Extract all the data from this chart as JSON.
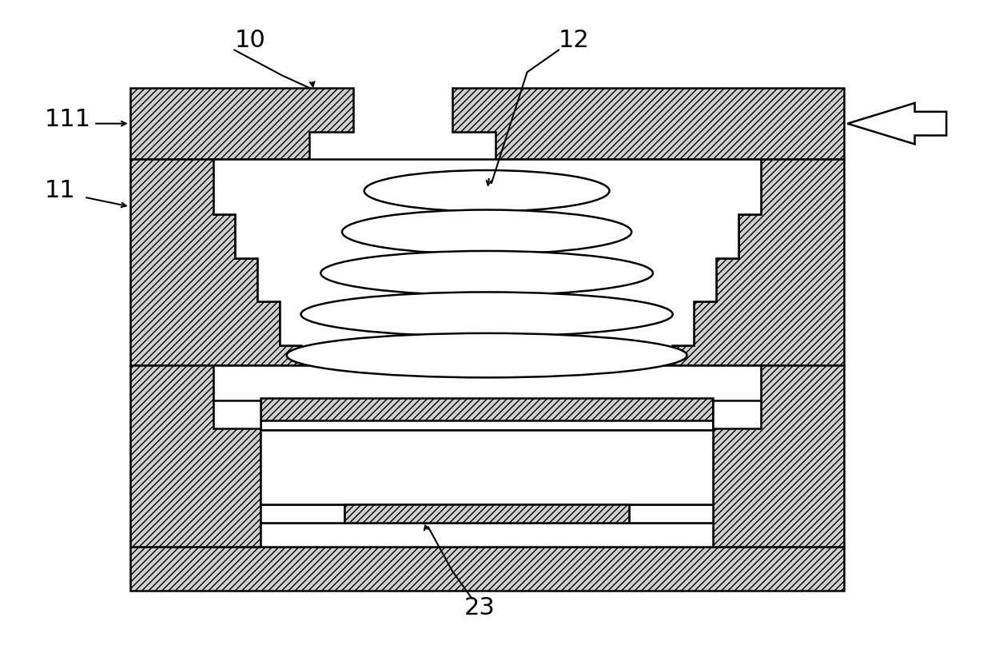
{
  "bg_color": "#ffffff",
  "line_color": "#000000",
  "fig_width": 12.4,
  "fig_height": 8.17,
  "dpi": 100
}
